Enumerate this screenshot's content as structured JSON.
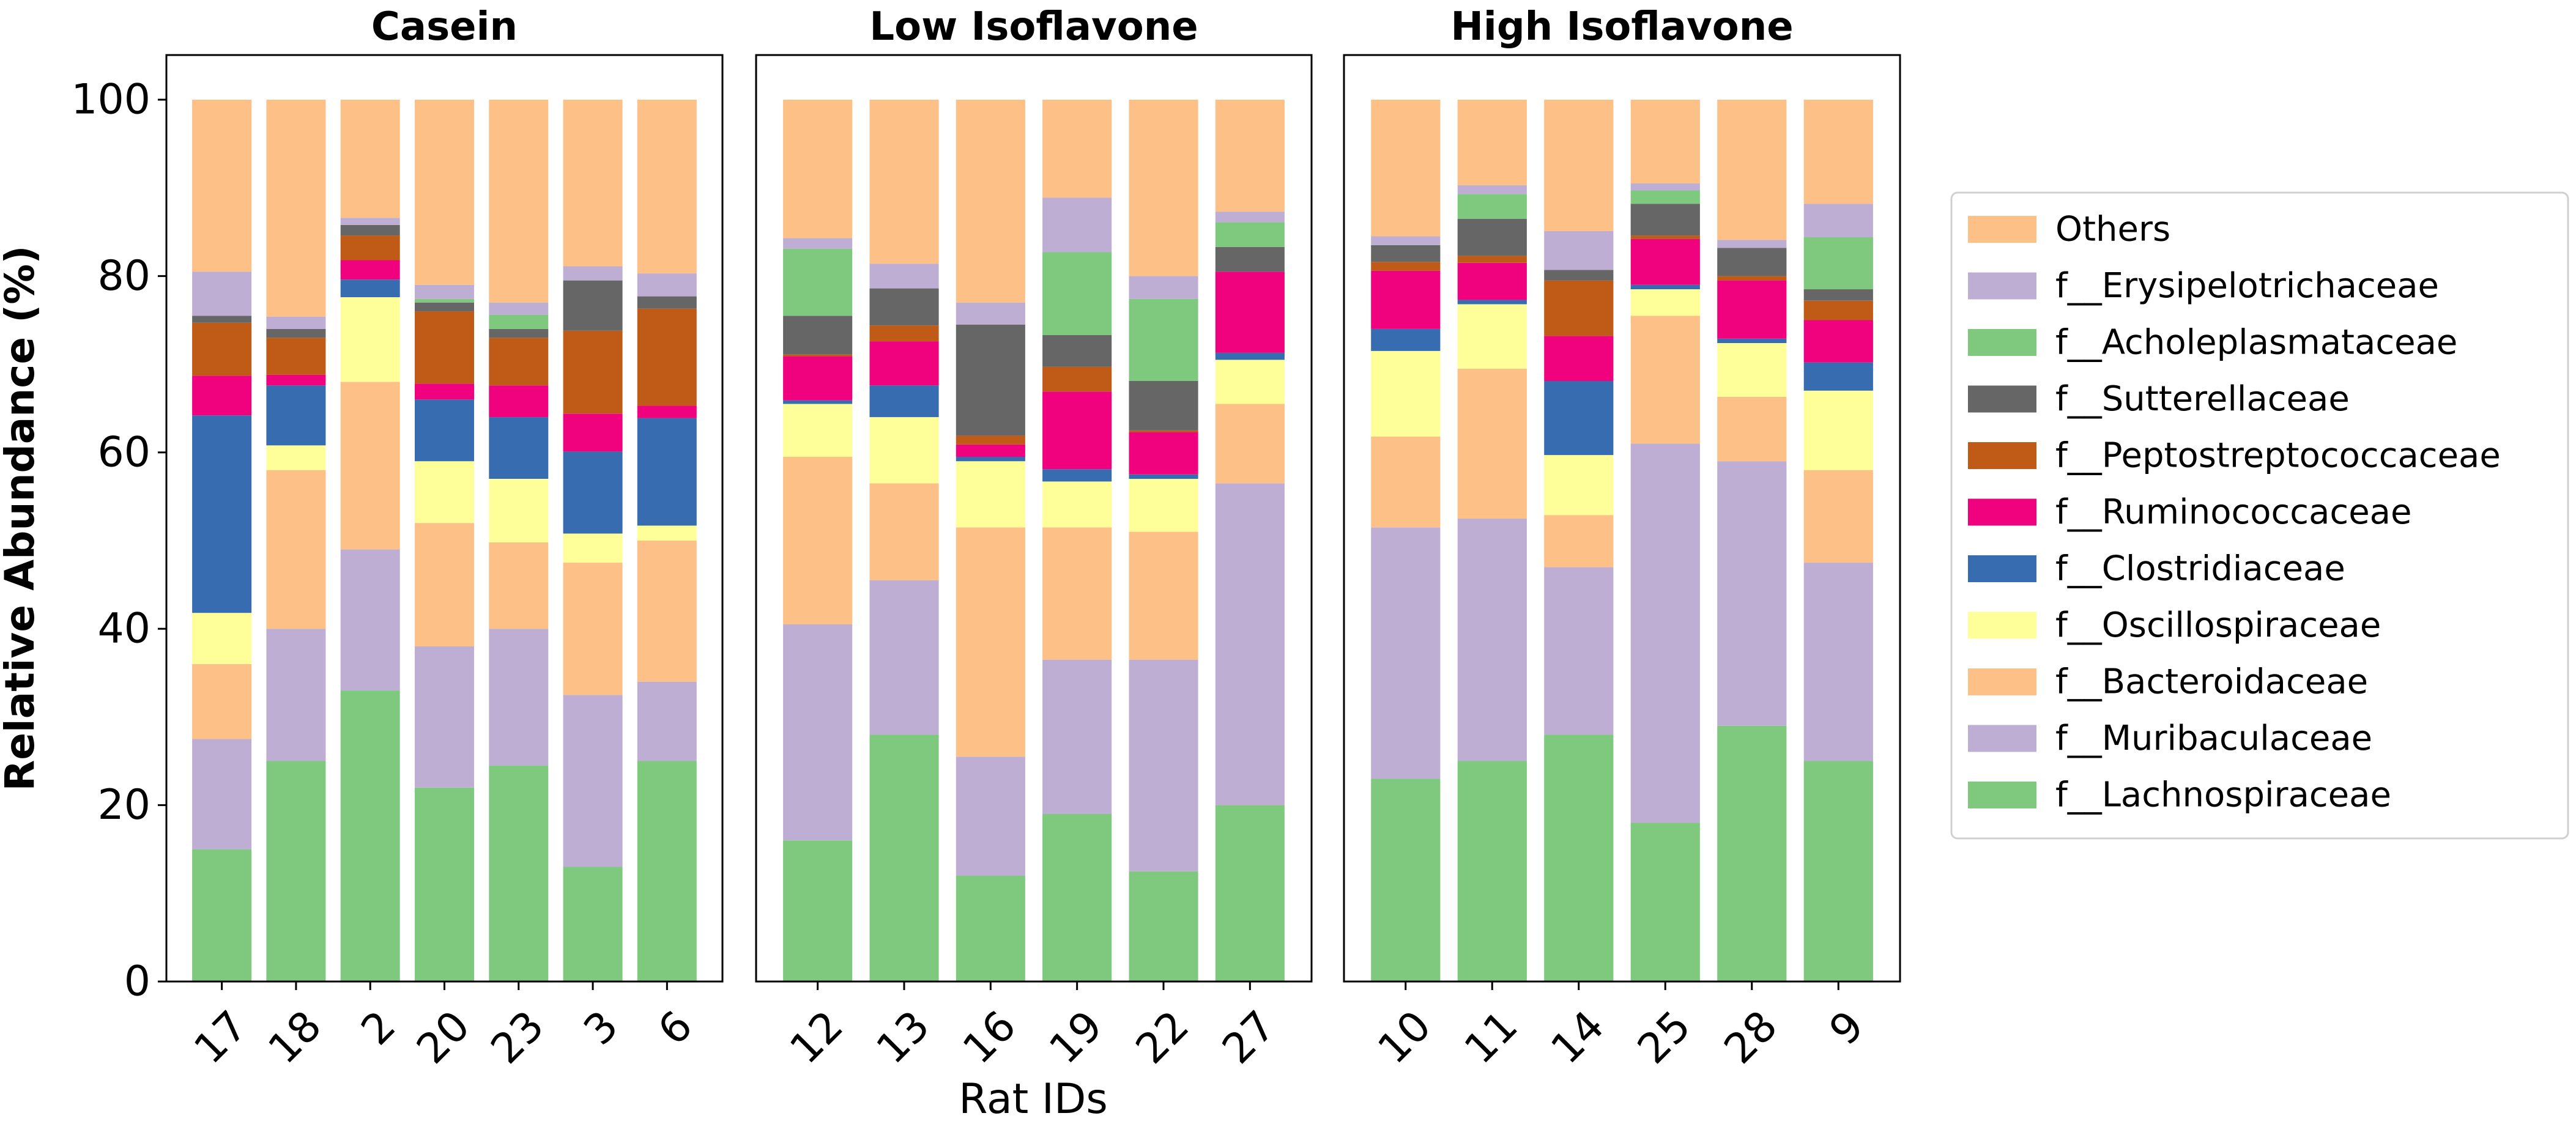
{
  "chart_data": {
    "type": "bar",
    "stacked": true,
    "ylabel": "Relative Abundance (%)",
    "xlabel": "Rat IDs",
    "ylim": [
      0,
      100
    ],
    "yticks": [
      "0",
      "20",
      "40",
      "60",
      "80",
      "100"
    ],
    "legend_position": "right",
    "series_names": [
      "f__Lachnospiraceae",
      "f__Muribaculaceae",
      "f__Bacteroidaceae",
      "f__Oscillospiraceae",
      "f__Clostridiaceae",
      "f__Ruminococcaceae",
      "f__Peptostreptococcaceae",
      "f__Sutterellaceae",
      "f__Acholeplasmataceae",
      "f__Erysipelotrichaceae",
      "Others"
    ],
    "legend_order": [
      "Others",
      "f__Erysipelotrichaceae",
      "f__Acholeplasmataceae",
      "f__Sutterellaceae",
      "f__Peptostreptococcaceae",
      "f__Ruminococcaceae",
      "f__Clostridiaceae",
      "f__Oscillospiraceae",
      "f__Bacteroidaceae",
      "f__Muribaculaceae",
      "f__Lachnospiraceae"
    ],
    "colors": {
      "f__Lachnospiraceae": "#7fc97f",
      "f__Muribaculaceae": "#beaed4",
      "f__Bacteroidaceae": "#fdc086",
      "f__Oscillospiraceae": "#ffff99",
      "f__Clostridiaceae": "#386cb0",
      "f__Ruminococcaceae": "#f0027f",
      "f__Peptostreptococcaceae": "#bf5b17",
      "f__Sutterellaceae": "#666666",
      "f__Acholeplasmataceae": "#7fc97f",
      "f__Erysipelotrichaceae": "#beaed4",
      "Others": "#fdc086"
    },
    "panels": [
      {
        "title": "Casein",
        "categories": [
          "17",
          "18",
          "2",
          "20",
          "23",
          "3",
          "6"
        ],
        "values": [
          [
            15.0,
            12.5,
            8.5,
            5.8,
            22.4,
            4.5,
            6.0,
            0.8,
            0.0,
            5.0,
            19.5
          ],
          [
            25.0,
            15.0,
            18.0,
            2.8,
            6.8,
            1.2,
            4.2,
            1.0,
            0.0,
            1.4,
            24.6
          ],
          [
            33.0,
            16.0,
            19.0,
            9.6,
            2.0,
            2.2,
            2.8,
            1.2,
            0.0,
            0.8,
            13.4
          ],
          [
            22.0,
            16.0,
            14.0,
            7.0,
            7.0,
            1.8,
            8.2,
            1.0,
            0.4,
            1.6,
            21.0
          ],
          [
            24.5,
            15.5,
            9.8,
            7.2,
            7.0,
            3.6,
            5.4,
            1.0,
            1.6,
            1.4,
            23.0
          ],
          [
            13.0,
            19.5,
            15.0,
            3.3,
            9.3,
            4.3,
            9.4,
            5.7,
            0.0,
            1.6,
            18.9
          ],
          [
            25.0,
            9.0,
            16.0,
            1.7,
            12.2,
            1.4,
            11.0,
            1.4,
            0.0,
            2.6,
            19.7
          ]
        ]
      },
      {
        "title": "Low Isoflavone",
        "categories": [
          "12",
          "13",
          "16",
          "19",
          "22",
          "27"
        ],
        "values": [
          [
            16.0,
            24.5,
            19.0,
            6.0,
            0.4,
            5.0,
            0.2,
            4.4,
            7.6,
            1.2,
            15.7
          ],
          [
            28.0,
            17.5,
            11.0,
            7.5,
            3.6,
            5.0,
            1.8,
            4.2,
            0.0,
            2.8,
            18.6
          ],
          [
            12.0,
            13.5,
            26.0,
            7.5,
            0.5,
            1.4,
            1.0,
            12.6,
            0.0,
            2.5,
            23.0
          ],
          [
            19.0,
            17.5,
            15.0,
            5.2,
            1.4,
            8.8,
            2.8,
            3.6,
            9.4,
            6.2,
            11.1
          ],
          [
            12.5,
            24.0,
            14.5,
            6.0,
            0.5,
            4.8,
            0.2,
            5.6,
            9.3,
            2.6,
            20.0
          ],
          [
            20.0,
            36.5,
            9.0,
            5.0,
            0.8,
            9.2,
            0.0,
            2.8,
            2.8,
            1.2,
            12.7
          ]
        ]
      },
      {
        "title": "High Isoflavone",
        "categories": [
          "10",
          "11",
          "14",
          "25",
          "28",
          "9"
        ],
        "values": [
          [
            23.0,
            28.5,
            10.3,
            9.7,
            2.5,
            6.6,
            1.0,
            1.9,
            0.0,
            1.0,
            15.5
          ],
          [
            25.0,
            27.5,
            17.0,
            7.3,
            0.5,
            4.2,
            0.8,
            4.2,
            2.8,
            1.0,
            9.7
          ],
          [
            28.0,
            19.0,
            5.9,
            6.8,
            8.4,
            5.1,
            6.3,
            1.2,
            0.0,
            4.4,
            14.9
          ],
          [
            18.0,
            43.0,
            14.5,
            3.0,
            0.5,
            5.2,
            0.4,
            3.6,
            1.5,
            0.8,
            9.5
          ],
          [
            29.0,
            30.0,
            7.3,
            6.1,
            0.5,
            6.6,
            0.5,
            3.2,
            0.0,
            0.9,
            15.9
          ],
          [
            25.0,
            22.5,
            10.5,
            9.0,
            3.2,
            4.8,
            2.2,
            1.3,
            5.9,
            3.8,
            11.8
          ]
        ]
      }
    ]
  }
}
